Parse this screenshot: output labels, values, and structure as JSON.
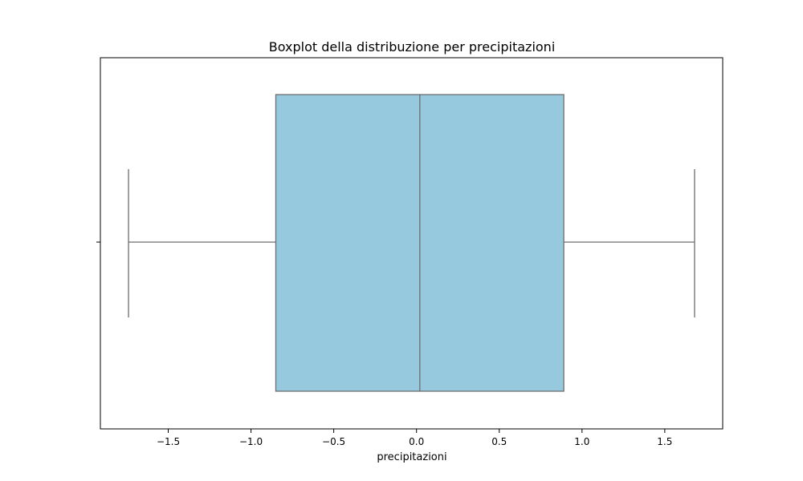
{
  "chart_data": {
    "type": "boxplot",
    "title": "Boxplot della distribuzione per precipitazioni",
    "xlabel": "precipitazioni",
    "ylabel": "",
    "xlim": [
      -1.91,
      1.85
    ],
    "xticks": [
      {
        "value": -1.5,
        "label": "−1.5"
      },
      {
        "value": -1.0,
        "label": "−1.0"
      },
      {
        "value": -0.5,
        "label": "−0.5"
      },
      {
        "value": 0.0,
        "label": "0.0"
      },
      {
        "value": 0.5,
        "label": "0.5"
      },
      {
        "value": 1.0,
        "label": "1.0"
      },
      {
        "value": 1.5,
        "label": "1.5"
      }
    ],
    "grid": false,
    "box": {
      "whisker_low": -1.74,
      "q1": -0.85,
      "median": 0.02,
      "q3": 0.89,
      "whisker_high": 1.68
    },
    "colors": {
      "box_fill": "#96c8de",
      "line": "#6e6e6e",
      "axis": "#000000",
      "background": "#ffffff"
    }
  }
}
